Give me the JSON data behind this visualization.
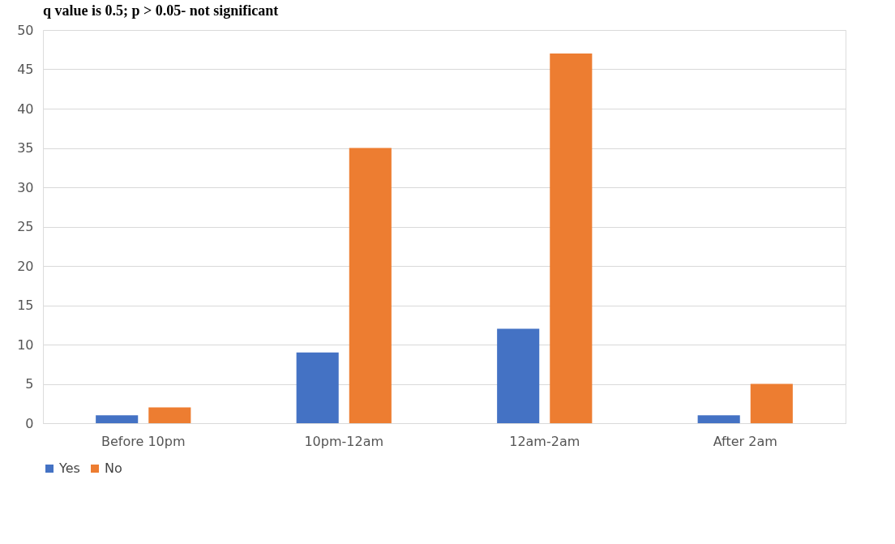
{
  "chart_data": {
    "type": "bar",
    "title": "q value is 0.5; p > 0.05- not significant",
    "categories": [
      "Before 10pm",
      "10pm-12am",
      "12am-2am",
      "After 2am"
    ],
    "series": [
      {
        "name": "Yes",
        "color": "#4472c4",
        "values": [
          1,
          9,
          12,
          1
        ]
      },
      {
        "name": "No",
        "color": "#ed7d31",
        "values": [
          2,
          35,
          47,
          5
        ]
      }
    ],
    "ylim": [
      0,
      50
    ],
    "yticks": [
      0,
      5,
      10,
      15,
      20,
      25,
      30,
      35,
      40,
      45,
      50
    ],
    "grid": "y",
    "legend": "bottom"
  }
}
